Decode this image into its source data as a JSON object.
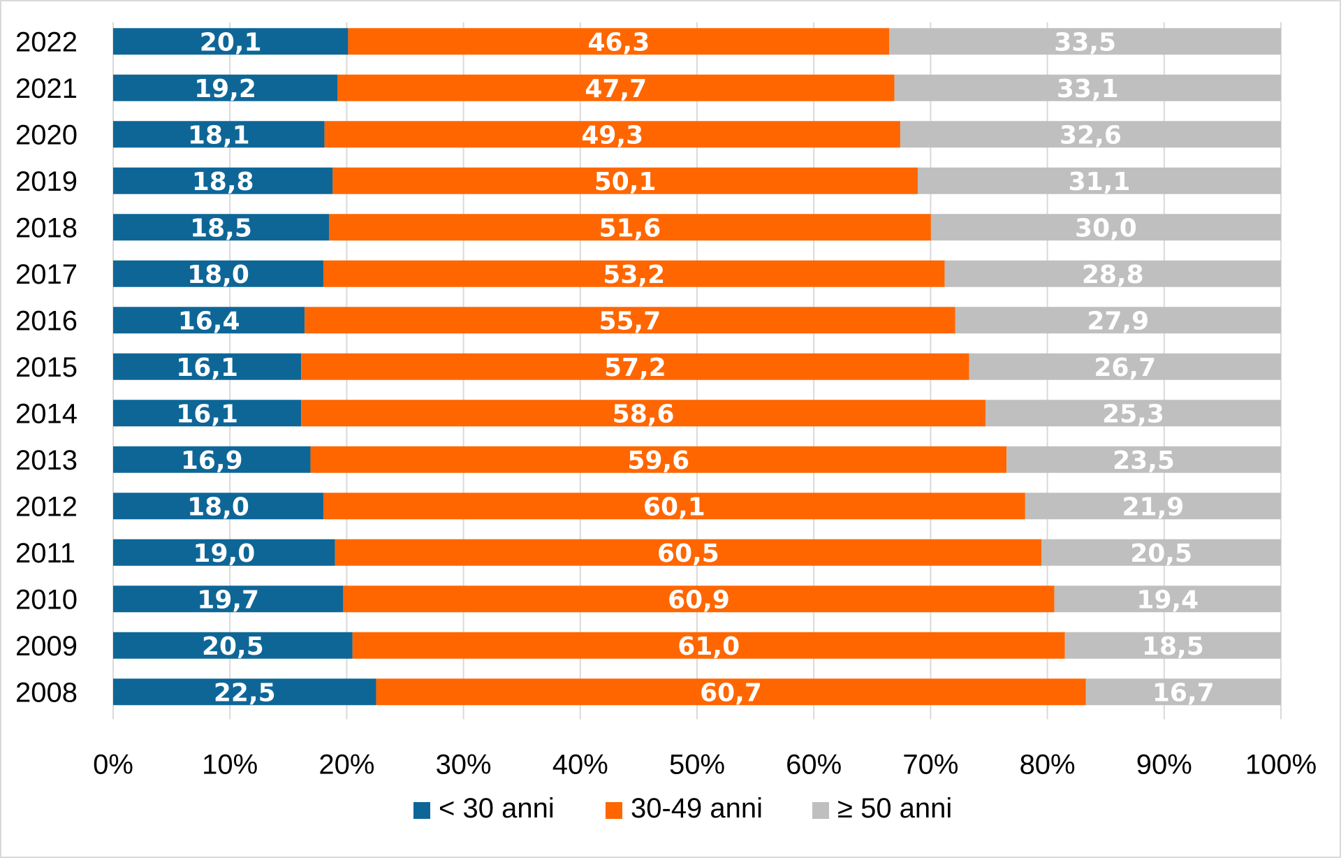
{
  "chart_data": {
    "type": "bar",
    "orientation": "horizontal",
    "stacked": "percent",
    "categories": [
      "2022",
      "2021",
      "2020",
      "2019",
      "2018",
      "2017",
      "2016",
      "2015",
      "2014",
      "2013",
      "2012",
      "2011",
      "2010",
      "2009",
      "2008"
    ],
    "series": [
      {
        "name": "< 30 anni",
        "color": "#0E6697",
        "values": [
          20.1,
          19.2,
          18.1,
          18.8,
          18.5,
          18.0,
          16.4,
          16.1,
          16.1,
          16.9,
          18.0,
          19.0,
          19.7,
          20.5,
          22.5
        ],
        "labels": [
          "20,1",
          "19,2",
          "18,1",
          "18,8",
          "18,5",
          "18,0",
          "16,4",
          "16,1",
          "16,1",
          "16,9",
          "18,0",
          "19,0",
          "19,7",
          "20,5",
          "22,5"
        ]
      },
      {
        "name": "30-49 anni",
        "color": "#FF6600",
        "values": [
          46.3,
          47.7,
          49.3,
          50.1,
          51.6,
          53.2,
          55.7,
          57.2,
          58.6,
          59.6,
          60.1,
          60.5,
          60.9,
          61.0,
          60.7
        ],
        "labels": [
          "46,3",
          "47,7",
          "49,3",
          "50,1",
          "51,6",
          "53,2",
          "55,7",
          "57,2",
          "58,6",
          "59,6",
          "60,1",
          "60,5",
          "60,9",
          "61,0",
          "60,7"
        ]
      },
      {
        "name": "≥ 50 anni",
        "color": "#BFBFBF",
        "values": [
          33.5,
          33.1,
          32.6,
          31.1,
          30.0,
          28.8,
          27.9,
          26.7,
          25.3,
          23.5,
          21.9,
          20.5,
          19.4,
          18.5,
          16.7
        ],
        "labels": [
          "33,5",
          "33,1",
          "32,6",
          "31,1",
          "30,0",
          "28,8",
          "27,9",
          "26,7",
          "25,3",
          "23,5",
          "21,9",
          "20,5",
          "19,4",
          "18,5",
          "16,7"
        ]
      }
    ],
    "xaxis": {
      "ticks": [
        0,
        10,
        20,
        30,
        40,
        50,
        60,
        70,
        80,
        90,
        100
      ],
      "tick_labels": [
        "0%",
        "10%",
        "20%",
        "30%",
        "40%",
        "50%",
        "60%",
        "70%",
        "80%",
        "90%",
        "100%"
      ],
      "range": [
        0,
        100
      ]
    },
    "grid": "vertical",
    "gridline_color": "#d9d9d9",
    "legend_position": "bottom"
  }
}
